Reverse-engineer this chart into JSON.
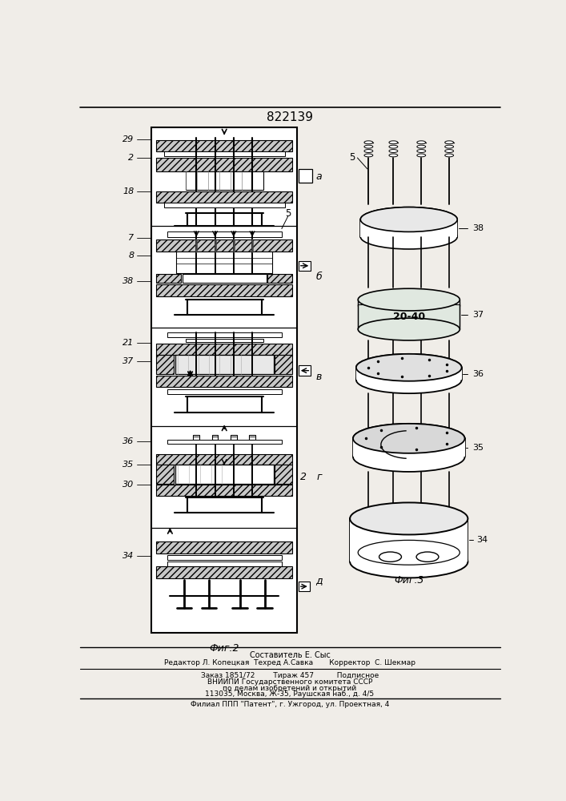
{
  "patent_number": "822139",
  "background_color": "#f0ede8",
  "fig2_label": "Фиг.2",
  "fig3_label": "Фиг.3",
  "footer_line1": "Составитель Е. Сыс",
  "footer_line2": "Редактор Л. Копецкая  Техред А.Савка       Корректор  С. Шекмар",
  "footer_line3": "Заказ 1851/72        Тираж 457          Подписное",
  "footer_line4": "ВНИИПИ Государственного комитета СССР",
  "footer_line5": "по делам изобретений и открытий",
  "footer_line6": "113035, Москва, Ж-35, Раушская наб., д. 4/5",
  "footer_line7": "Филиал ППП \"Патент\", г. Ужгород, ул. Проектная, 4"
}
